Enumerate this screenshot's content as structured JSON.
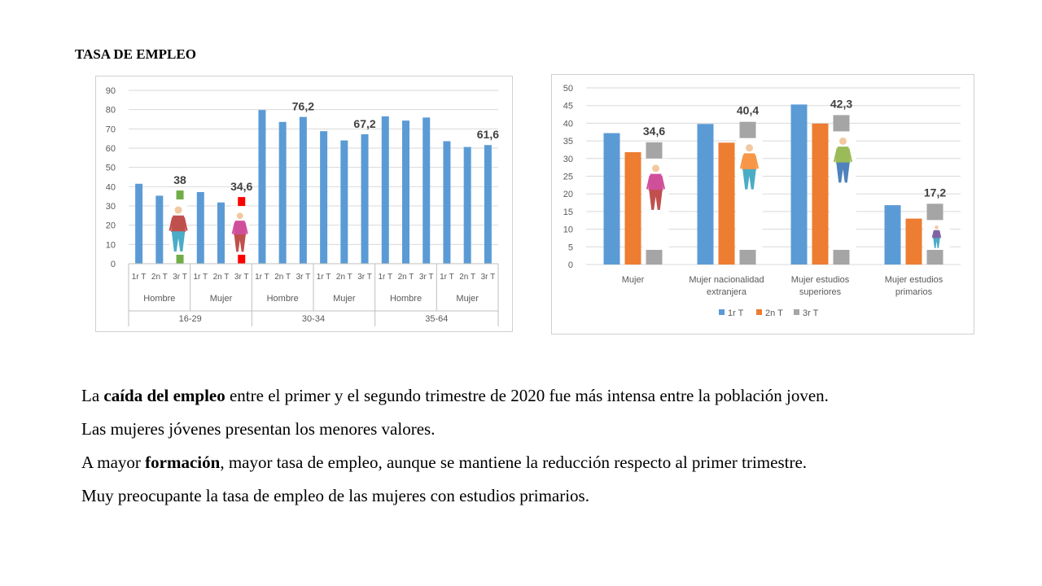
{
  "slide": {
    "title": "TASA DE EMPLEO"
  },
  "paragraphs": [
    {
      "parts": [
        {
          "text": "La ",
          "bold": false
        },
        {
          "text": "caída del empleo",
          "bold": true
        },
        {
          "text": " entre el primer y el segundo trimestre de 2020 fue más intensa entre la población joven.",
          "bold": false
        }
      ]
    },
    {
      "parts": [
        {
          "text": "Las mujeres jóvenes presentan los menores valores.",
          "bold": false
        }
      ]
    },
    {
      "parts": [
        {
          "text": "A mayor ",
          "bold": false
        },
        {
          "text": "formación",
          "bold": true
        },
        {
          "text": ", mayor tasa de empleo, aunque se mantiene la reducción respecto al primer trimestre.",
          "bold": false
        }
      ]
    },
    {
      "parts": [
        {
          "text": "Muy preocupante la tasa de empleo de las mujeres con estudios primarios.",
          "bold": false
        }
      ]
    }
  ],
  "chart_data": [
    {
      "type": "bar",
      "title": "",
      "ylim": [
        0,
        90
      ],
      "yticks": [
        0,
        10,
        20,
        30,
        40,
        50,
        60,
        70,
        80,
        90
      ],
      "grid": true,
      "legend": "none",
      "default_color": "#5b9bd5",
      "groups": [
        {
          "label": "16-29",
          "subgroups": [
            {
              "label": "Hombre",
              "bars": [
                {
                  "label": "1r T",
                  "value": 41.5
                },
                {
                  "label": "2n T",
                  "value": 35.3
                },
                {
                  "label": "3r T",
                  "value": 38,
                  "data_label": "38",
                  "color": "#70ad47",
                  "figure": true
                }
              ]
            },
            {
              "label": "Mujer",
              "bars": [
                {
                  "label": "1r T",
                  "value": 37.2
                },
                {
                  "label": "2n T",
                  "value": 31.8
                },
                {
                  "label": "3r T",
                  "value": 34.6,
                  "data_label": "34,6",
                  "color": "#ff0000",
                  "figure": true
                }
              ]
            }
          ]
        },
        {
          "label": "30-34",
          "subgroups": [
            {
              "label": "Hombre",
              "bars": [
                {
                  "label": "1r T",
                  "value": 79.8
                },
                {
                  "label": "2n T",
                  "value": 73.6
                },
                {
                  "label": "3r T",
                  "value": 76.2,
                  "data_label": "76,2"
                }
              ]
            },
            {
              "label": "Mujer",
              "bars": [
                {
                  "label": "1r T",
                  "value": 68.8
                },
                {
                  "label": "2n T",
                  "value": 64.0
                },
                {
                  "label": "3r T",
                  "value": 67.2,
                  "data_label": "67,2"
                }
              ]
            }
          ]
        },
        {
          "label": "35-64",
          "subgroups": [
            {
              "label": "Hombre",
              "bars": [
                {
                  "label": "1r T",
                  "value": 76.5
                },
                {
                  "label": "2n T",
                  "value": 74.3
                },
                {
                  "label": "3r T",
                  "value": 75.9
                }
              ]
            },
            {
              "label": "Mujer",
              "bars": [
                {
                  "label": "1r T",
                  "value": 63.6
                },
                {
                  "label": "2n T",
                  "value": 60.6
                },
                {
                  "label": "3r T",
                  "value": 61.6,
                  "data_label": "61,6"
                }
              ]
            }
          ]
        }
      ]
    },
    {
      "type": "bar",
      "title": "",
      "ylim": [
        0,
        50
      ],
      "yticks": [
        0,
        5,
        10,
        15,
        20,
        25,
        30,
        35,
        40,
        45,
        50
      ],
      "grid": true,
      "legend": "bottom",
      "categories": [
        [
          "Mujer"
        ],
        [
          "Mujer nacionalidad",
          "extranjera"
        ],
        [
          "Mujer estudios",
          "superiores"
        ],
        [
          "Mujer estudios",
          "primarios"
        ]
      ],
      "series": [
        {
          "name": "1r T",
          "color": "#5b9bd5",
          "values": [
            37.2,
            39.8,
            45.3,
            16.8
          ]
        },
        {
          "name": "2n T",
          "color": "#ed7d31",
          "values": [
            31.8,
            34.5,
            39.9,
            13.0
          ]
        },
        {
          "name": "3r T",
          "color": "#a5a5a5",
          "values": [
            34.6,
            40.4,
            42.3,
            17.2
          ]
        }
      ],
      "data_labels": {
        "series_index": 2,
        "labels": [
          "34,6",
          "40,4",
          "42,3",
          "17,2"
        ]
      },
      "figures_on_series_index": 2
    }
  ]
}
